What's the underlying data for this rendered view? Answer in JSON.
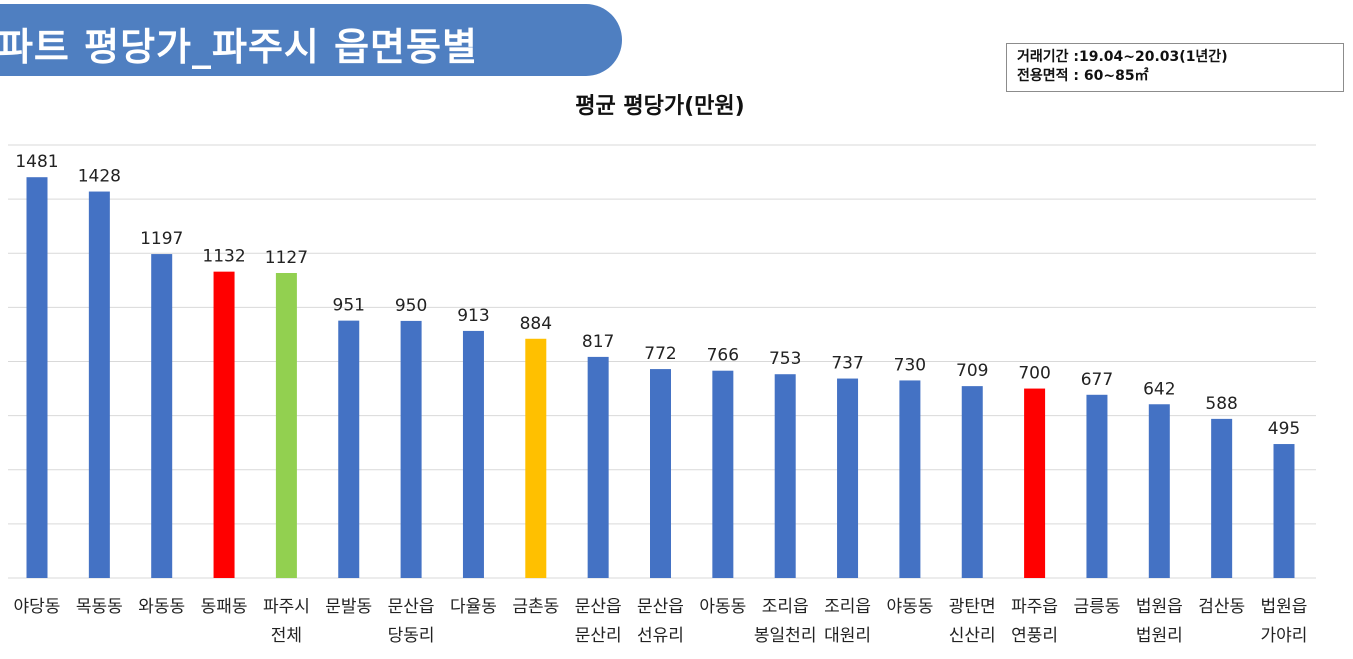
{
  "header": {
    "title": "아파트 평당가_파주시 읍면동별",
    "period": "거래기간 :19.04~20.03(1년간)",
    "area": "전용면적 : 60~85㎡"
  },
  "chart_data": {
    "type": "bar",
    "title": "평균 평당가(만원)",
    "categories": [
      [
        "야당동"
      ],
      [
        "목동동"
      ],
      [
        "와동동"
      ],
      [
        "동패동"
      ],
      [
        "파주시",
        "전체"
      ],
      [
        "문발동"
      ],
      [
        "문산읍",
        "당동리"
      ],
      [
        "다율동"
      ],
      [
        "금촌동"
      ],
      [
        "문산읍",
        "문산리"
      ],
      [
        "문산읍",
        "선유리"
      ],
      [
        "아동동"
      ],
      [
        "조리읍",
        "봉일천리"
      ],
      [
        "조리읍",
        "대원리"
      ],
      [
        "야동동"
      ],
      [
        "광탄면",
        "신산리"
      ],
      [
        "파주읍",
        "연풍리"
      ],
      [
        "금릉동"
      ],
      [
        "법원읍",
        "법원리"
      ],
      [
        "검산동"
      ],
      [
        "법원읍",
        "가야리"
      ]
    ],
    "values": [
      1481,
      1428,
      1197,
      1132,
      1127,
      951,
      950,
      913,
      884,
      817,
      772,
      766,
      753,
      737,
      730,
      709,
      700,
      677,
      642,
      588,
      495
    ],
    "bar_colors": [
      "#4472c4",
      "#4472c4",
      "#4472c4",
      "#ff0000",
      "#92d050",
      "#4472c4",
      "#4472c4",
      "#4472c4",
      "#ffc000",
      "#4472c4",
      "#4472c4",
      "#4472c4",
      "#4472c4",
      "#4472c4",
      "#4472c4",
      "#4472c4",
      "#ff0000",
      "#4472c4",
      "#4472c4",
      "#4472c4",
      "#4472c4"
    ],
    "ylim": [
      0,
      1600
    ],
    "gridlines": [
      200,
      400,
      600,
      800,
      1000,
      1200,
      1400,
      1600
    ],
    "grid": true,
    "legend": "none",
    "xlabel": "",
    "ylabel": ""
  }
}
